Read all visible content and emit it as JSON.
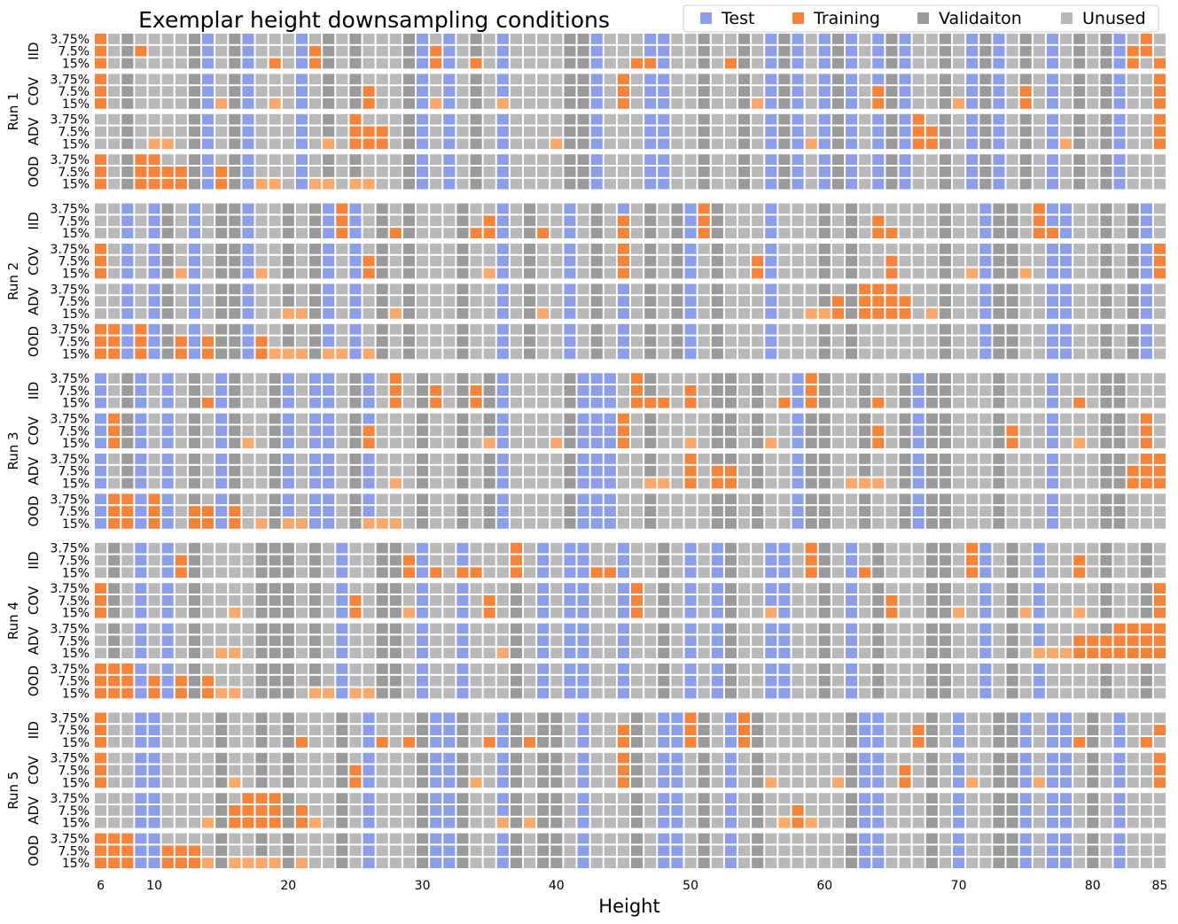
{
  "chart_data": {
    "type": "heatmap",
    "title": "Exemplar height downsampling conditions",
    "xlabel": "Height",
    "x_range": [
      6,
      85
    ],
    "x_ticks": [
      6,
      10,
      20,
      30,
      40,
      50,
      60,
      70,
      80,
      85
    ],
    "legend": {
      "placement": "top-right",
      "entries": [
        {
          "key": "test",
          "label": "Test",
          "color": "#8c9ee8"
        },
        {
          "key": "training",
          "label": "Training",
          "color": "#f5843a"
        },
        {
          "key": "validation",
          "label": "Validaiton",
          "color": "#9a9a9a"
        },
        {
          "key": "unused",
          "label": "Unused",
          "color": "#b8b8b8"
        }
      ]
    },
    "training_light_color": "#f9a86e",
    "fractions": [
      "3.75%",
      "7.5%",
      "15%"
    ],
    "conditions": [
      "IID",
      "COV",
      "ADV",
      "OOD"
    ],
    "runs": [
      {
        "label": "Run 1",
        "test_heights": [
          14,
          17,
          21,
          30,
          32,
          36,
          43,
          47,
          48,
          56,
          58,
          60,
          62,
          64,
          66,
          71,
          73,
          77,
          82
        ],
        "validation_heights": [
          8,
          13,
          16,
          23,
          25,
          29,
          34,
          41,
          42,
          51,
          54,
          57,
          61,
          64,
          65,
          69,
          72,
          75,
          79,
          81
        ],
        "panels": [
          {
            "condition": "IID",
            "training": {
              "3.75%": [
                6,
                84
              ],
              "7.5%": [
                6,
                9,
                22,
                31,
                83,
                84
              ],
              "15%": [
                6,
                19,
                22,
                31,
                34,
                46,
                47,
                53,
                83,
                85
              ]
            }
          },
          {
            "condition": "COV",
            "training": {
              "3.75%": [
                6,
                45,
                85
              ],
              "7.5%": [
                6,
                26,
                45,
                64,
                75,
                85
              ],
              "15%": [
                6,
                15,
                19,
                26,
                31,
                36,
                45,
                55,
                64,
                70,
                75,
                85
              ]
            }
          },
          {
            "condition": "ADV",
            "training": {
              "3.75%": [
                25,
                67,
                85
              ],
              "7.5%": [
                25,
                26,
                27,
                67,
                68,
                85
              ],
              "15%": [
                10,
                11,
                23,
                25,
                26,
                27,
                40,
                59,
                67,
                68,
                78,
                85
              ]
            }
          },
          {
            "condition": "OOD",
            "training": {
              "3.75%": [
                6,
                9,
                10
              ],
              "7.5%": [
                6,
                9,
                10,
                11,
                12,
                15
              ],
              "15%": [
                6,
                9,
                10,
                11,
                12,
                15,
                18,
                19,
                22,
                23,
                25,
                26
              ]
            }
          }
        ]
      },
      {
        "label": "Run 2",
        "test_heights": [
          8,
          10,
          13,
          17,
          23,
          25,
          36,
          41,
          45,
          50,
          56,
          72,
          77,
          78,
          84
        ],
        "validation_heights": [
          11,
          15,
          16,
          20,
          22,
          27,
          29,
          33,
          38,
          43,
          47,
          49,
          52,
          60,
          62,
          69,
          73,
          74,
          81,
          83
        ],
        "panels": [
          {
            "condition": "IID",
            "training": {
              "3.75%": [
                24,
                51,
                76
              ],
              "7.5%": [
                24,
                35,
                45,
                51,
                64,
                76
              ],
              "15%": [
                24,
                28,
                34,
                35,
                39,
                45,
                51,
                64,
                65,
                76,
                77
              ]
            }
          },
          {
            "condition": "COV",
            "training": {
              "3.75%": [
                6,
                45,
                85
              ],
              "7.5%": [
                6,
                26,
                45,
                55,
                65,
                85
              ],
              "15%": [
                6,
                12,
                18,
                26,
                35,
                45,
                55,
                65,
                71,
                75,
                85
              ]
            }
          },
          {
            "condition": "ADV",
            "training": {
              "3.75%": [
                63,
                64,
                65
              ],
              "7.5%": [
                61,
                63,
                64,
                65,
                66
              ],
              "15%": [
                20,
                21,
                28,
                39,
                59,
                60,
                61,
                63,
                64,
                65,
                66,
                68
              ]
            }
          },
          {
            "condition": "OOD",
            "training": {
              "3.75%": [
                6,
                7,
                9
              ],
              "7.5%": [
                6,
                7,
                9,
                12,
                14,
                18
              ],
              "15%": [
                6,
                7,
                9,
                12,
                14,
                18,
                19,
                20,
                21,
                23,
                24,
                26
              ]
            }
          }
        ]
      },
      {
        "label": "Run 3",
        "test_heights": [
          6,
          9,
          11,
          15,
          20,
          22,
          23,
          26,
          36,
          42,
          43,
          44,
          58,
          67,
          77
        ],
        "validation_heights": [
          8,
          13,
          16,
          19,
          25,
          30,
          33,
          35,
          41,
          47,
          52,
          53,
          55,
          59,
          60,
          63,
          66,
          68,
          69,
          73,
          81,
          82
        ],
        "panels": [
          {
            "condition": "IID",
            "training": {
              "3.75%": [
                28,
                46,
                59
              ],
              "7.5%": [
                28,
                31,
                34,
                46,
                50,
                59
              ],
              "15%": [
                14,
                28,
                31,
                34,
                46,
                47,
                48,
                50,
                57,
                59,
                64,
                79
              ]
            }
          },
          {
            "condition": "COV",
            "training": {
              "3.75%": [
                7,
                45,
                84
              ],
              "7.5%": [
                7,
                26,
                45,
                64,
                74,
                84
              ],
              "15%": [
                7,
                17,
                26,
                35,
                40,
                45,
                50,
                56,
                64,
                74,
                79,
                84
              ]
            }
          },
          {
            "condition": "ADV",
            "training": {
              "3.75%": [
                50,
                84,
                85
              ],
              "7.5%": [
                50,
                52,
                53,
                83,
                84,
                85
              ],
              "15%": [
                28,
                47,
                48,
                50,
                52,
                53,
                62,
                63,
                64,
                83,
                84,
                85
              ]
            }
          },
          {
            "condition": "OOD",
            "training": {
              "3.75%": [
                7,
                8,
                10
              ],
              "7.5%": [
                7,
                8,
                10,
                13,
                14,
                16
              ],
              "15%": [
                7,
                8,
                10,
                13,
                14,
                16,
                18,
                20,
                21,
                26,
                27,
                28
              ]
            }
          }
        ]
      },
      {
        "label": "Run 4",
        "test_heights": [
          9,
          11,
          24,
          30,
          33,
          39,
          41,
          42,
          45,
          50,
          52,
          56,
          57,
          62,
          72,
          76
        ],
        "validation_heights": [
          7,
          13,
          18,
          19,
          20,
          22,
          27,
          28,
          37,
          48,
          53,
          60,
          64,
          68,
          69,
          74,
          81,
          84
        ],
        "panels": [
          {
            "condition": "IID",
            "training": {
              "3.75%": [
                37,
                59,
                71
              ],
              "7.5%": [
                12,
                29,
                37,
                59,
                71,
                79
              ],
              "15%": [
                12,
                29,
                31,
                33,
                34,
                37,
                43,
                44,
                59,
                63,
                71,
                79
              ]
            }
          },
          {
            "condition": "COV",
            "training": {
              "3.75%": [
                6,
                46,
                85
              ],
              "7.5%": [
                6,
                25,
                35,
                46,
                65,
                85
              ],
              "15%": [
                6,
                16,
                25,
                29,
                35,
                46,
                56,
                65,
                70,
                75,
                79,
                85
              ]
            }
          },
          {
            "condition": "ADV",
            "training": {
              "3.75%": [
                82,
                83,
                84,
                85
              ],
              "7.5%": [
                79,
                80,
                81,
                82,
                83,
                84,
                85
              ],
              "15%": [
                15,
                16,
                36,
                76,
                77,
                78,
                79,
                80,
                81,
                82,
                83,
                84,
                85
              ]
            }
          },
          {
            "condition": "OOD",
            "training": {
              "3.75%": [
                6,
                7,
                8
              ],
              "7.5%": [
                6,
                7,
                8,
                10,
                12,
                14
              ],
              "15%": [
                6,
                7,
                8,
                10,
                12,
                14,
                15,
                16,
                22,
                23,
                25,
                26
              ]
            }
          }
        ]
      },
      {
        "label": "Run 5",
        "test_heights": [
          9,
          10,
          26,
          31,
          32,
          36,
          42,
          48,
          49,
          53,
          63,
          64,
          70,
          75,
          77,
          78,
          82
        ],
        "validation_heights": [
          15,
          18,
          20,
          24,
          30,
          33,
          37,
          39,
          40,
          46,
          51,
          55,
          62,
          68,
          73,
          74,
          80
        ],
        "panels": [
          {
            "condition": "IID",
            "training": {
              "3.75%": [
                6,
                50,
                54
              ],
              "7.5%": [
                6,
                45,
                50,
                54,
                67,
                85
              ],
              "15%": [
                6,
                21,
                27,
                29,
                35,
                38,
                45,
                50,
                54,
                67,
                79,
                84
              ]
            }
          },
          {
            "condition": "COV",
            "training": {
              "3.75%": [
                6,
                45,
                85
              ],
              "7.5%": [
                6,
                25,
                45,
                66,
                85
              ],
              "15%": [
                6,
                16,
                25,
                34,
                45,
                56,
                61,
                66,
                71,
                76,
                85
              ]
            }
          },
          {
            "condition": "ADV",
            "training": {
              "3.75%": [
                17,
                18,
                19
              ],
              "7.5%": [
                16,
                17,
                18,
                19,
                21,
                58
              ],
              "15%": [
                14,
                16,
                17,
                18,
                19,
                21,
                22,
                36,
                38,
                57,
                58,
                59
              ]
            }
          },
          {
            "condition": "OOD",
            "training": {
              "3.75%": [
                6,
                7,
                8
              ],
              "7.5%": [
                6,
                7,
                8,
                11,
                12,
                13
              ],
              "15%": [
                6,
                7,
                8,
                11,
                12,
                13,
                14,
                16,
                17,
                18,
                19,
                21
              ]
            }
          }
        ]
      }
    ]
  }
}
